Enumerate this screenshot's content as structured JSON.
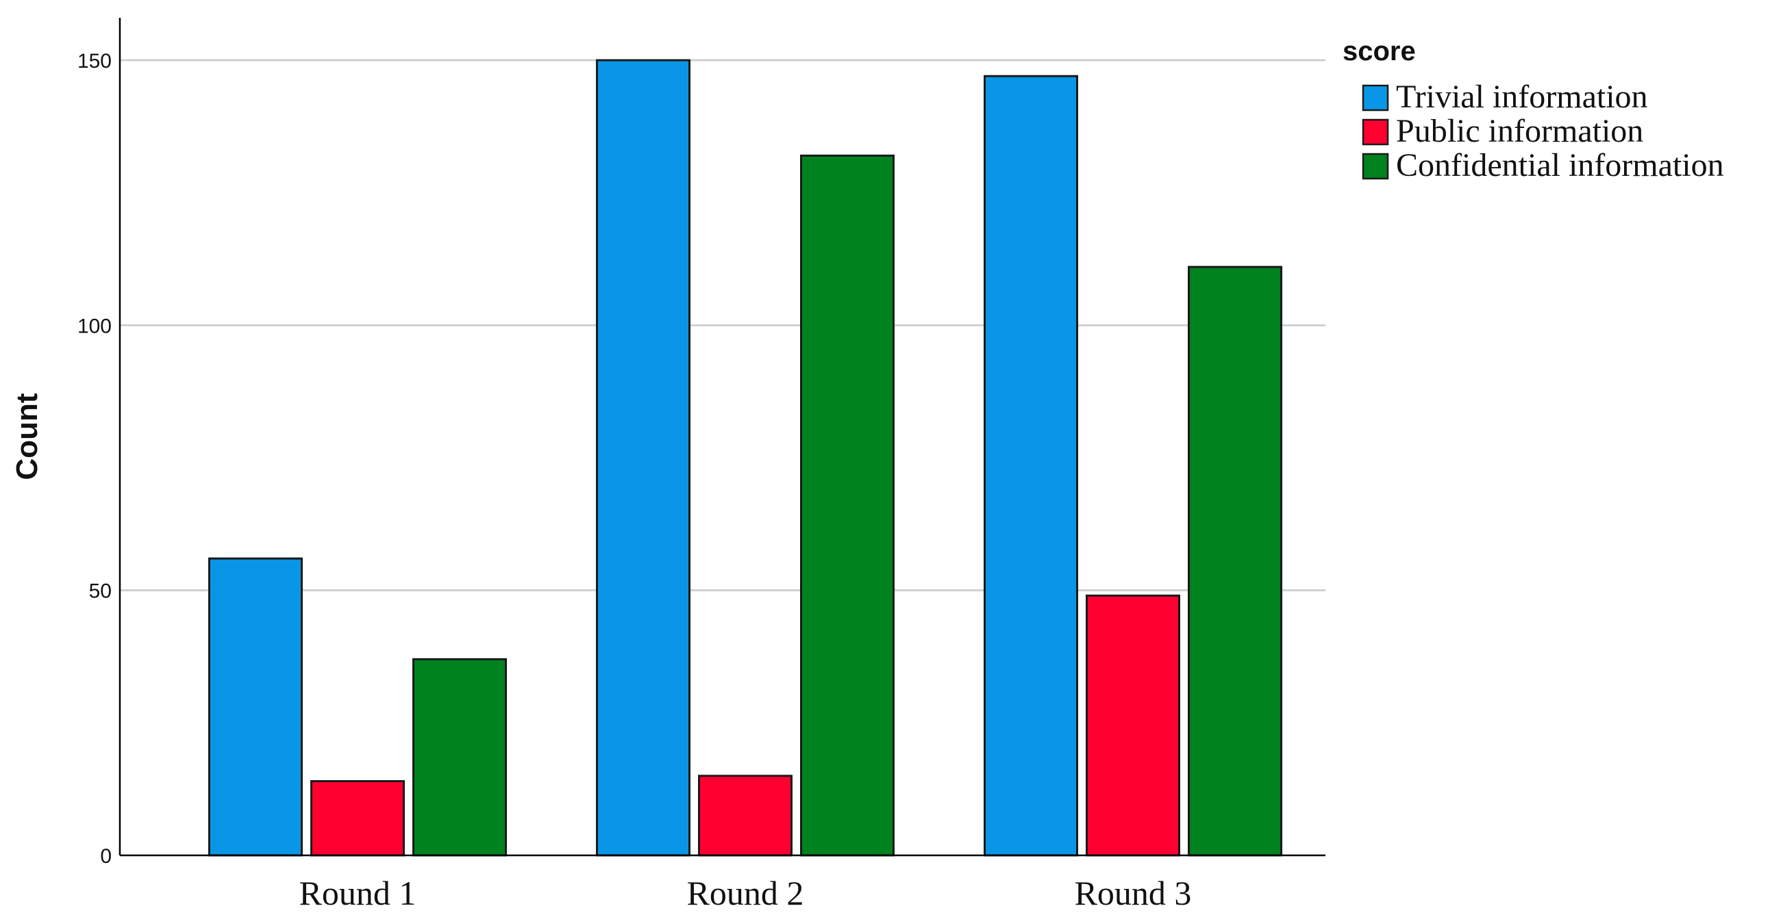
{
  "chart_data": {
    "type": "bar",
    "ylabel": "Count",
    "xlabel": "",
    "ylim": [
      0,
      158
    ],
    "yticks": [
      0,
      50,
      100,
      150
    ],
    "grid": true,
    "legend_position": "top-right",
    "legend_title": "score",
    "categories": [
      "Round 1",
      "Round 2",
      "Round 3"
    ],
    "series": [
      {
        "name": "Trivial information",
        "color": "#0a96e6",
        "values": [
          56,
          150,
          147
        ]
      },
      {
        "name": "Public information",
        "color": "#ff0030",
        "values": [
          14,
          15,
          49
        ]
      },
      {
        "name": "Confidential information",
        "color": "#00821e",
        "values": [
          37,
          132,
          111
        ]
      }
    ]
  }
}
